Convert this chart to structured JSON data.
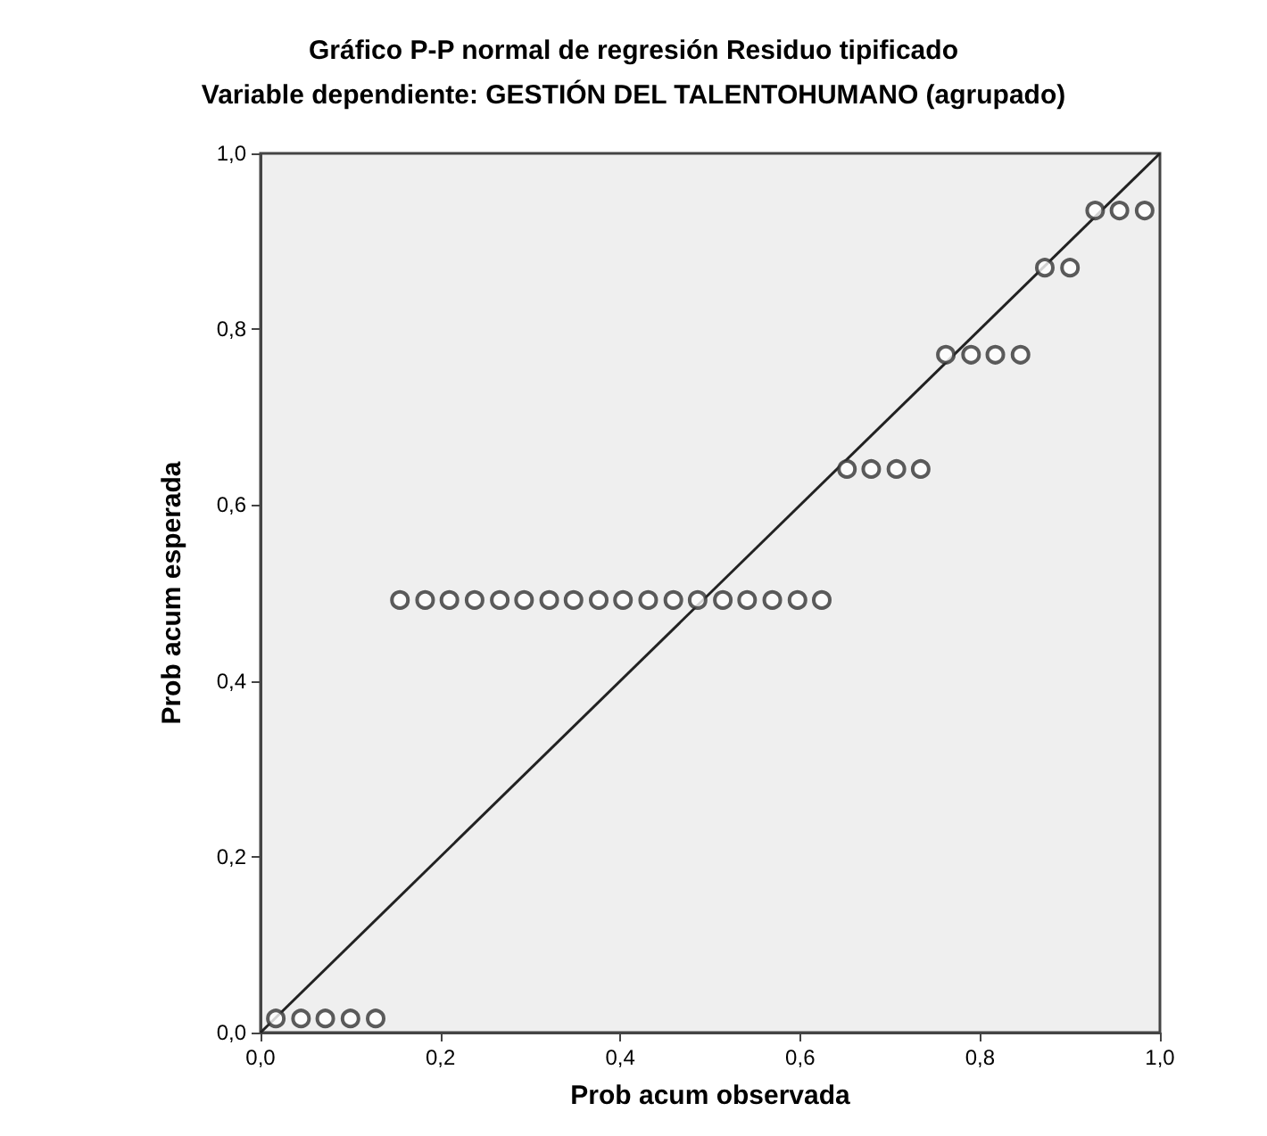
{
  "chart_data": {
    "type": "scatter",
    "title": "Gráfico P-P normal de regresión Residuo tipificado",
    "subtitle": "Variable dependiente: GESTIÓN DEL TALENTOHUMANO (agrupado)",
    "xlabel": "Prob acum observada",
    "ylabel": "Prob acum esperada",
    "xlim": [
      0,
      1
    ],
    "ylim": [
      0,
      1
    ],
    "xticks": [
      {
        "value": 0,
        "label": "0,0"
      },
      {
        "value": 0.2,
        "label": "0,2"
      },
      {
        "value": 0.4,
        "label": "0,4"
      },
      {
        "value": 0.6,
        "label": "0,6"
      },
      {
        "value": 0.8,
        "label": "0,8"
      },
      {
        "value": 1,
        "label": "1,0"
      }
    ],
    "yticks": [
      {
        "value": 0,
        "label": "0,0"
      },
      {
        "value": 0.2,
        "label": "0,2"
      },
      {
        "value": 0.4,
        "label": "0,4"
      },
      {
        "value": 0.6,
        "label": "0,6"
      },
      {
        "value": 0.8,
        "label": "0,8"
      },
      {
        "value": 1,
        "label": "1,0"
      }
    ],
    "grid": false,
    "marker": "circle",
    "series": [
      {
        "color": "#333333",
        "x": [
          0.017,
          0.045,
          0.072,
          0.1,
          0.128,
          0.155,
          0.183,
          0.21,
          0.238,
          0.266,
          0.293,
          0.321,
          0.348,
          0.376,
          0.403,
          0.431,
          0.459,
          0.486,
          0.514,
          0.541,
          0.569,
          0.597,
          0.624,
          0.652,
          0.679,
          0.707,
          0.734,
          0.762,
          0.79,
          0.817,
          0.845,
          0.872,
          0.9,
          0.928,
          0.955,
          0.983
        ],
        "values": [
          0.016,
          0.016,
          0.016,
          0.016,
          0.016,
          0.492,
          0.492,
          0.492,
          0.492,
          0.492,
          0.492,
          0.492,
          0.492,
          0.492,
          0.492,
          0.492,
          0.492,
          0.492,
          0.492,
          0.492,
          0.492,
          0.492,
          0.492,
          0.641,
          0.641,
          0.641,
          0.641,
          0.771,
          0.771,
          0.771,
          0.771,
          0.87,
          0.87,
          0.935,
          0.935,
          0.935
        ]
      },
      {
        "type": "line",
        "color": "#222222",
        "x": [
          0,
          1
        ],
        "values": [
          0,
          1
        ],
        "marker": "none",
        "line_style": "solid"
      }
    ]
  }
}
